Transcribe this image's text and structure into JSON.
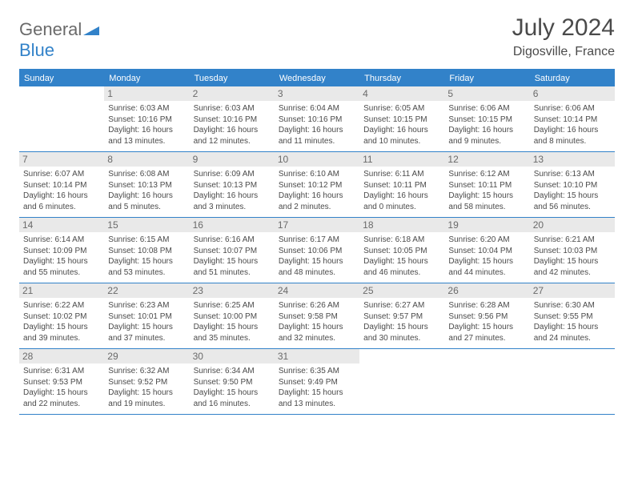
{
  "logo": {
    "general": "General",
    "blue": "Blue"
  },
  "header": {
    "title": "July 2024",
    "location": "Digosville, France"
  },
  "daynames": [
    "Sunday",
    "Monday",
    "Tuesday",
    "Wednesday",
    "Thursday",
    "Friday",
    "Saturday"
  ],
  "colors": {
    "accent": "#3282c9",
    "daynum_bg": "#e9e9e9",
    "text": "#4a4a4a"
  },
  "weeks": [
    [
      {
        "blank": true
      },
      {
        "n": "1",
        "sr": "Sunrise: 6:03 AM",
        "ss": "Sunset: 10:16 PM",
        "dl": "Daylight: 16 hours and 13 minutes."
      },
      {
        "n": "2",
        "sr": "Sunrise: 6:03 AM",
        "ss": "Sunset: 10:16 PM",
        "dl": "Daylight: 16 hours and 12 minutes."
      },
      {
        "n": "3",
        "sr": "Sunrise: 6:04 AM",
        "ss": "Sunset: 10:16 PM",
        "dl": "Daylight: 16 hours and 11 minutes."
      },
      {
        "n": "4",
        "sr": "Sunrise: 6:05 AM",
        "ss": "Sunset: 10:15 PM",
        "dl": "Daylight: 16 hours and 10 minutes."
      },
      {
        "n": "5",
        "sr": "Sunrise: 6:06 AM",
        "ss": "Sunset: 10:15 PM",
        "dl": "Daylight: 16 hours and 9 minutes."
      },
      {
        "n": "6",
        "sr": "Sunrise: 6:06 AM",
        "ss": "Sunset: 10:14 PM",
        "dl": "Daylight: 16 hours and 8 minutes."
      }
    ],
    [
      {
        "n": "7",
        "sr": "Sunrise: 6:07 AM",
        "ss": "Sunset: 10:14 PM",
        "dl": "Daylight: 16 hours and 6 minutes."
      },
      {
        "n": "8",
        "sr": "Sunrise: 6:08 AM",
        "ss": "Sunset: 10:13 PM",
        "dl": "Daylight: 16 hours and 5 minutes."
      },
      {
        "n": "9",
        "sr": "Sunrise: 6:09 AM",
        "ss": "Sunset: 10:13 PM",
        "dl": "Daylight: 16 hours and 3 minutes."
      },
      {
        "n": "10",
        "sr": "Sunrise: 6:10 AM",
        "ss": "Sunset: 10:12 PM",
        "dl": "Daylight: 16 hours and 2 minutes."
      },
      {
        "n": "11",
        "sr": "Sunrise: 6:11 AM",
        "ss": "Sunset: 10:11 PM",
        "dl": "Daylight: 16 hours and 0 minutes."
      },
      {
        "n": "12",
        "sr": "Sunrise: 6:12 AM",
        "ss": "Sunset: 10:11 PM",
        "dl": "Daylight: 15 hours and 58 minutes."
      },
      {
        "n": "13",
        "sr": "Sunrise: 6:13 AM",
        "ss": "Sunset: 10:10 PM",
        "dl": "Daylight: 15 hours and 56 minutes."
      }
    ],
    [
      {
        "n": "14",
        "sr": "Sunrise: 6:14 AM",
        "ss": "Sunset: 10:09 PM",
        "dl": "Daylight: 15 hours and 55 minutes."
      },
      {
        "n": "15",
        "sr": "Sunrise: 6:15 AM",
        "ss": "Sunset: 10:08 PM",
        "dl": "Daylight: 15 hours and 53 minutes."
      },
      {
        "n": "16",
        "sr": "Sunrise: 6:16 AM",
        "ss": "Sunset: 10:07 PM",
        "dl": "Daylight: 15 hours and 51 minutes."
      },
      {
        "n": "17",
        "sr": "Sunrise: 6:17 AM",
        "ss": "Sunset: 10:06 PM",
        "dl": "Daylight: 15 hours and 48 minutes."
      },
      {
        "n": "18",
        "sr": "Sunrise: 6:18 AM",
        "ss": "Sunset: 10:05 PM",
        "dl": "Daylight: 15 hours and 46 minutes."
      },
      {
        "n": "19",
        "sr": "Sunrise: 6:20 AM",
        "ss": "Sunset: 10:04 PM",
        "dl": "Daylight: 15 hours and 44 minutes."
      },
      {
        "n": "20",
        "sr": "Sunrise: 6:21 AM",
        "ss": "Sunset: 10:03 PM",
        "dl": "Daylight: 15 hours and 42 minutes."
      }
    ],
    [
      {
        "n": "21",
        "sr": "Sunrise: 6:22 AM",
        "ss": "Sunset: 10:02 PM",
        "dl": "Daylight: 15 hours and 39 minutes."
      },
      {
        "n": "22",
        "sr": "Sunrise: 6:23 AM",
        "ss": "Sunset: 10:01 PM",
        "dl": "Daylight: 15 hours and 37 minutes."
      },
      {
        "n": "23",
        "sr": "Sunrise: 6:25 AM",
        "ss": "Sunset: 10:00 PM",
        "dl": "Daylight: 15 hours and 35 minutes."
      },
      {
        "n": "24",
        "sr": "Sunrise: 6:26 AM",
        "ss": "Sunset: 9:58 PM",
        "dl": "Daylight: 15 hours and 32 minutes."
      },
      {
        "n": "25",
        "sr": "Sunrise: 6:27 AM",
        "ss": "Sunset: 9:57 PM",
        "dl": "Daylight: 15 hours and 30 minutes."
      },
      {
        "n": "26",
        "sr": "Sunrise: 6:28 AM",
        "ss": "Sunset: 9:56 PM",
        "dl": "Daylight: 15 hours and 27 minutes."
      },
      {
        "n": "27",
        "sr": "Sunrise: 6:30 AM",
        "ss": "Sunset: 9:55 PM",
        "dl": "Daylight: 15 hours and 24 minutes."
      }
    ],
    [
      {
        "n": "28",
        "sr": "Sunrise: 6:31 AM",
        "ss": "Sunset: 9:53 PM",
        "dl": "Daylight: 15 hours and 22 minutes."
      },
      {
        "n": "29",
        "sr": "Sunrise: 6:32 AM",
        "ss": "Sunset: 9:52 PM",
        "dl": "Daylight: 15 hours and 19 minutes."
      },
      {
        "n": "30",
        "sr": "Sunrise: 6:34 AM",
        "ss": "Sunset: 9:50 PM",
        "dl": "Daylight: 15 hours and 16 minutes."
      },
      {
        "n": "31",
        "sr": "Sunrise: 6:35 AM",
        "ss": "Sunset: 9:49 PM",
        "dl": "Daylight: 15 hours and 13 minutes."
      },
      {
        "blank": true
      },
      {
        "blank": true
      },
      {
        "blank": true
      }
    ]
  ]
}
